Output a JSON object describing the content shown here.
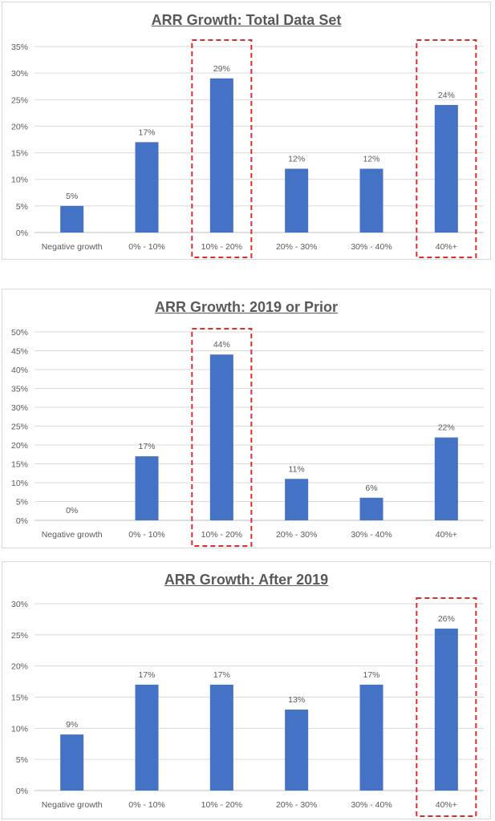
{
  "charts": [
    {
      "type": "bar",
      "title": "ARR Growth: Total Data Set",
      "categories": [
        "Negative growth",
        "0% - 10%",
        "10% - 20%",
        "20% - 30%",
        "30% - 40%",
        "40%+"
      ],
      "values": [
        5,
        17,
        29,
        12,
        12,
        24
      ],
      "data_labels": [
        "5%",
        "17%",
        "29%",
        "12%",
        "12%",
        "24%"
      ],
      "exact_values": [
        4.8,
        17.1,
        29.3,
        12.2,
        12.2,
        24.4
      ],
      "y_ticks": [
        "0%",
        "5%",
        "10%",
        "15%",
        "20%",
        "25%",
        "30%",
        "35%"
      ],
      "ylim": [
        0,
        35
      ],
      "highlighted_categories": [
        "10% - 20%",
        "40%+"
      ],
      "bar_color": "#4472C4",
      "highlight_color": "#E02B2B",
      "grid": true
    },
    {
      "type": "bar",
      "title": "ARR Growth: 2019 or Prior",
      "categories": [
        "Negative growth",
        "0% - 10%",
        "10% - 20%",
        "20% - 30%",
        "30% - 40%",
        "40%+"
      ],
      "values": [
        0,
        17,
        44,
        11,
        6,
        22
      ],
      "data_labels": [
        "0%",
        "17%",
        "44%",
        "11%",
        "6%",
        "22%"
      ],
      "exact_values": [
        0,
        16.7,
        44.4,
        11.1,
        5.6,
        22.2
      ],
      "y_ticks": [
        "0%",
        "5%",
        "10%",
        "15%",
        "20%",
        "25%",
        "30%",
        "35%",
        "40%",
        "45%",
        "50%"
      ],
      "ylim": [
        0,
        50
      ],
      "highlighted_categories": [
        "10% - 20%"
      ],
      "bar_color": "#4472C4",
      "highlight_color": "#E02B2B",
      "grid": true
    },
    {
      "type": "bar",
      "title": "ARR Growth: After 2019",
      "categories": [
        "Negative growth",
        "0% - 10%",
        "10% - 20%",
        "20% - 30%",
        "30% - 40%",
        "40%+"
      ],
      "values": [
        9,
        17,
        17,
        13,
        17,
        26
      ],
      "data_labels": [
        "9%",
        "17%",
        "17%",
        "13%",
        "17%",
        "26%"
      ],
      "exact_values": [
        8.7,
        17.4,
        17.4,
        13.0,
        17.4,
        26.1
      ],
      "y_ticks": [
        "0%",
        "5%",
        "10%",
        "15%",
        "20%",
        "25%",
        "30%"
      ],
      "ylim": [
        0,
        30
      ],
      "highlighted_categories": [
        "40%+"
      ],
      "bar_color": "#4472C4",
      "highlight_color": "#E02B2B",
      "grid": true
    }
  ],
  "chart_data": [
    {
      "type": "bar",
      "title": "ARR Growth: Total Data Set",
      "categories": [
        "Negative growth",
        "0% - 10%",
        "10% - 20%",
        "20% - 30%",
        "30% - 40%",
        "40%+"
      ],
      "values": [
        5,
        17,
        29,
        12,
        12,
        24
      ],
      "ylim": [
        0,
        35
      ]
    },
    {
      "type": "bar",
      "title": "ARR Growth: 2019 or Prior",
      "categories": [
        "Negative growth",
        "0% - 10%",
        "10% - 20%",
        "20% - 30%",
        "30% - 40%",
        "40%+"
      ],
      "values": [
        0,
        17,
        44,
        11,
        6,
        22
      ],
      "ylim": [
        0,
        50
      ]
    },
    {
      "type": "bar",
      "title": "ARR Growth: After 2019",
      "categories": [
        "Negative growth",
        "0% - 10%",
        "10% - 20%",
        "20% - 30%",
        "30% - 40%",
        "40%+"
      ],
      "values": [
        9,
        17,
        17,
        13,
        17,
        26
      ],
      "ylim": [
        0,
        30
      ]
    }
  ]
}
